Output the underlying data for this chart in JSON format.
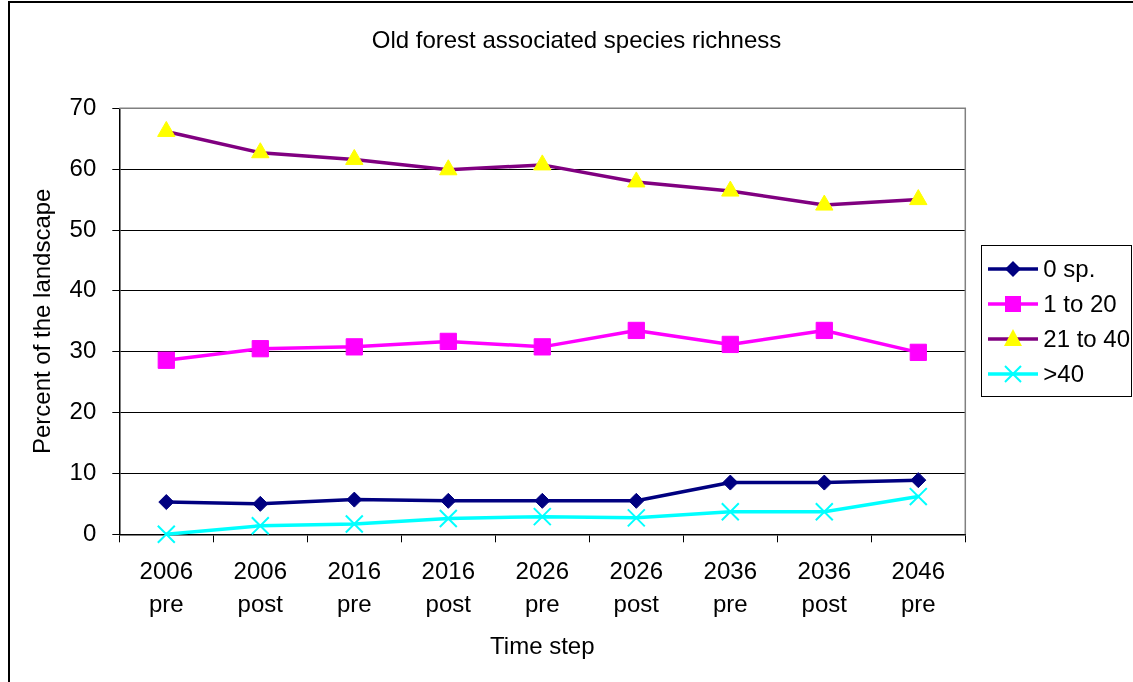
{
  "chart_data": {
    "type": "line",
    "title": "Old forest associated species richness",
    "xlabel": "Time step",
    "ylabel": "Percent of the landscape",
    "categories": [
      "2006 pre",
      "2006 post",
      "2016 pre",
      "2016 post",
      "2026 pre",
      "2026 post",
      "2036 pre",
      "2036 post",
      "2046 pre"
    ],
    "series": [
      {
        "name": "0 sp.",
        "color": "#000080",
        "marker": "diamond",
        "values": [
          5.3,
          5.0,
          5.7,
          5.5,
          5.5,
          5.5,
          8.5,
          8.5,
          8.9
        ]
      },
      {
        "name": "1 to 20",
        "color": "#ff00ff",
        "marker": "square",
        "values": [
          28.6,
          30.5,
          30.8,
          31.7,
          30.8,
          33.5,
          31.2,
          33.5,
          29.9
        ]
      },
      {
        "name": "21 to 40",
        "color": "#800080",
        "colors": [
          "#ffff00",
          "#ffff00",
          "#ffff00",
          "#ffff00",
          "#ffff00",
          "#ffff00",
          "#ffff00",
          "#ffff00",
          "#ffff00"
        ],
        "marker": "triangle",
        "values": [
          66.2,
          62.7,
          61.6,
          59.9,
          60.7,
          57.9,
          56.4,
          54.1,
          55.0
        ]
      },
      {
        "name": ">40",
        "color": "#00ffff",
        "marker": "cross",
        "values": [
          0,
          1.4,
          1.7,
          2.6,
          2.9,
          2.7,
          3.7,
          3.7,
          6.2
        ]
      }
    ],
    "ylim": [
      0,
      70
    ],
    "yticks": [
      0,
      10,
      20,
      30,
      40,
      50,
      60,
      70
    ],
    "grid": "y",
    "legend": "right"
  }
}
